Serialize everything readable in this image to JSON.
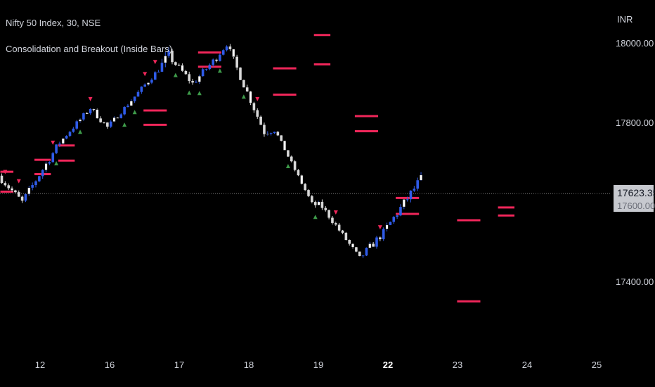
{
  "header": {
    "symbol": "Nifty 50 Index, 30, NSE",
    "indicator": "Consolidation and Breakout (Inside Bars)",
    "currency": "INR"
  },
  "price_scale": {
    "last_price": "17623.35",
    "last_price_hidden_tick": "17600.00"
  },
  "colors": {
    "background": "#000000",
    "bull": "#2f5be8",
    "bear": "#d9d9d9",
    "inside_bar_fill": "#ffffff",
    "consolidation_line": "#f0265a",
    "breakout_up": "#3e9b4a",
    "breakout_down": "#f0265a",
    "last_price_line": "#808080"
  },
  "chart_data": {
    "type": "candlestick",
    "title": "Nifty 50 Index, 30, NSE",
    "series_name": "Consolidation and Breakout (Inside Bars)",
    "x_ticks": [
      {
        "label": "12",
        "bold": false
      },
      {
        "label": "16",
        "bold": false
      },
      {
        "label": "17",
        "bold": false
      },
      {
        "label": "18",
        "bold": false
      },
      {
        "label": "19",
        "bold": false
      },
      {
        "label": "22",
        "bold": true
      },
      {
        "label": "23",
        "bold": false
      },
      {
        "label": "24",
        "bold": false
      },
      {
        "label": "25",
        "bold": false
      }
    ],
    "y_ticks": [
      "18000.00",
      "17800.00",
      "17400.00"
    ],
    "ylim": [
      17225,
      18110
    ],
    "last_price": 17623.35,
    "grid": false,
    "segments": [
      {
        "start": 17668,
        "end": 17602,
        "vol": 9,
        "lo": 17595,
        "hi": 17676
      },
      {
        "start": 17602,
        "end": 17752,
        "vol": 10,
        "lo": 17598,
        "hi": 17758
      },
      {
        "start": 17752,
        "end": 17838,
        "vol": 7,
        "lo": 17745,
        "hi": 17846
      },
      {
        "start": 17838,
        "end": 17790,
        "vol": 8,
        "lo": 17782,
        "hi": 17845
      },
      {
        "start": 17790,
        "end": 17838,
        "vol": 6,
        "lo": 17782,
        "hi": 17845
      },
      {
        "start": 17838,
        "end": 17935,
        "vol": 7,
        "lo": 17832,
        "hi": 17944
      },
      {
        "start": 17935,
        "end": 17968,
        "vol": 16,
        "lo": 17925,
        "hi": 17985
      },
      {
        "start": 17968,
        "end": 17900,
        "vol": 9,
        "lo": 17890,
        "hi": 17978
      },
      {
        "start": 17900,
        "end": 17965,
        "vol": 9,
        "lo": 17895,
        "hi": 17980
      },
      {
        "start": 17965,
        "end": 17998,
        "vol": 6,
        "lo": 17960,
        "hi": 18010
      },
      {
        "start": 17998,
        "end": 17778,
        "vol": 10,
        "lo": 17765,
        "hi": 18005
      },
      {
        "start": 17778,
        "end": 17785,
        "vol": 10,
        "lo": 17725,
        "hi": 17825
      },
      {
        "start": 17785,
        "end": 17598,
        "vol": 5,
        "lo": 17590,
        "hi": 17790
      },
      {
        "start": 17598,
        "end": 17590,
        "vol": 10,
        "lo": 17575,
        "hi": 17608
      },
      {
        "start": 17590,
        "end": 17460,
        "vol": 7,
        "lo": 17452,
        "hi": 17596
      },
      {
        "start": 17460,
        "end": 17525,
        "vol": 10,
        "lo": 17420,
        "hi": 17560
      },
      {
        "start": 17525,
        "end": 17660,
        "vol": 12,
        "lo": 17515,
        "hi": 17675
      }
    ],
    "consolidation_boxes": [
      {
        "from": 0,
        "to": 3,
        "high": 17678,
        "low": 17628
      },
      {
        "from": 10,
        "to": 14,
        "high": 17708,
        "low": 17672
      },
      {
        "from": 17,
        "to": 21,
        "high": 17744,
        "low": 17706
      },
      {
        "from": 42,
        "to": 48,
        "high": 17832,
        "low": 17796
      },
      {
        "from": 58,
        "to": 64,
        "high": 17978,
        "low": 17942
      },
      {
        "from": 80,
        "to": 86,
        "high": 17938,
        "low": 17872
      },
      {
        "from": 92,
        "to": 96,
        "high": 18022,
        "low": 17948
      },
      {
        "from": 104,
        "to": 110,
        "high": 17818,
        "low": 17780
      },
      {
        "from": 116,
        "to": 122,
        "high": 17612,
        "low": 17572
      },
      {
        "from": 134,
        "to": 140,
        "high": 17556,
        "low": 17352
      },
      {
        "from": 146,
        "to": 150,
        "high": 17588,
        "low": 17568
      }
    ],
    "breakout_up_bars": [
      16,
      23,
      36,
      39,
      51,
      55,
      58,
      64,
      71,
      84,
      92,
      142,
      150
    ],
    "breakout_down_bars": [
      1,
      5,
      15,
      26,
      42,
      45,
      75,
      98,
      111,
      128,
      134,
      145
    ],
    "inside_bar_every": 5
  }
}
